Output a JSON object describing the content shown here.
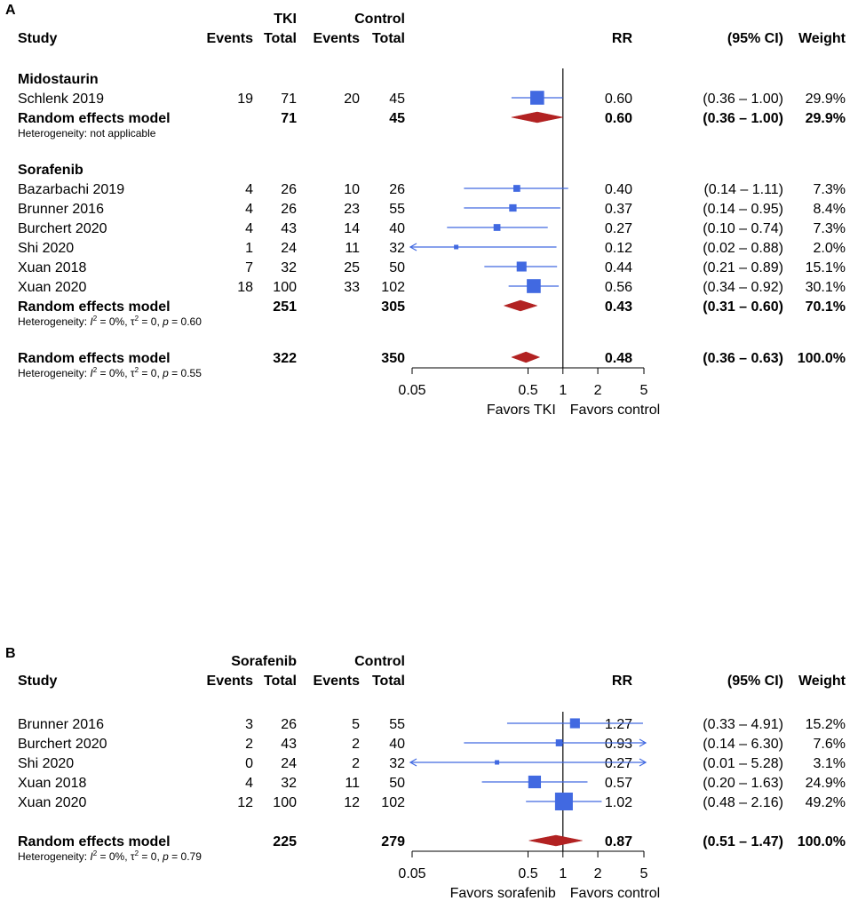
{
  "chart_data": [
    {
      "type": "forest",
      "panel_label": "A",
      "group_headers": {
        "exp": "TKI",
        "ctrl": "Control"
      },
      "column_headers": {
        "study": "Study",
        "events_exp": "Events",
        "total_exp": "Total",
        "events_ctrl": "Events",
        "total_ctrl": "Total",
        "rr": "RR",
        "ci": "(95% CI)",
        "weight": "Weight"
      },
      "x_axis": {
        "scale": "log",
        "ticks": [
          0.05,
          0.5,
          1,
          2,
          5
        ],
        "tick_labels": [
          "0.05",
          "0.5",
          "1",
          "2",
          "5"
        ],
        "label_left": "Favors TKI",
        "label_right": "Favors control"
      },
      "rows": [
        {
          "kind": "subgroup",
          "label": "Midostaurin"
        },
        {
          "kind": "study",
          "label": "Schlenk 2019",
          "events_exp": "19",
          "total_exp": "71",
          "events_ctrl": "20",
          "total_ctrl": "45",
          "rr": 0.6,
          "lower": 0.36,
          "upper": 1.0,
          "rr_text": "0.60",
          "ci_text": "(0.36 – 1.00)",
          "weight": 29.9,
          "weight_text": "29.9%"
        },
        {
          "kind": "summary",
          "label": "Random effects model",
          "total_exp": "71",
          "total_ctrl": "45",
          "rr": 0.6,
          "lower": 0.36,
          "upper": 1.0,
          "rr_text": "0.60",
          "ci_text": "(0.36 – 1.00)",
          "weight_text": "29.9%"
        },
        {
          "kind": "het",
          "text": "Heterogeneity: not applicable"
        },
        {
          "kind": "blank"
        },
        {
          "kind": "subgroup",
          "label": "Sorafenib"
        },
        {
          "kind": "study",
          "label": "Bazarbachi 2019",
          "events_exp": "4",
          "total_exp": "26",
          "events_ctrl": "10",
          "total_ctrl": "26",
          "rr": 0.4,
          "lower": 0.14,
          "upper": 1.11,
          "rr_text": "0.40",
          "ci_text": "(0.14 – 1.11)",
          "weight": 7.3,
          "weight_text": "7.3%"
        },
        {
          "kind": "study",
          "label": "Brunner 2016",
          "events_exp": "4",
          "total_exp": "26",
          "events_ctrl": "23",
          "total_ctrl": "55",
          "rr": 0.37,
          "lower": 0.14,
          "upper": 0.95,
          "rr_text": "0.37",
          "ci_text": "(0.14 – 0.95)",
          "weight": 8.4,
          "weight_text": "8.4%"
        },
        {
          "kind": "study",
          "label": "Burchert 2020",
          "events_exp": "4",
          "total_exp": "43",
          "events_ctrl": "14",
          "total_ctrl": "40",
          "rr": 0.27,
          "lower": 0.1,
          "upper": 0.74,
          "rr_text": "0.27",
          "ci_text": "(0.10 – 0.74)",
          "weight": 7.3,
          "weight_text": "7.3%"
        },
        {
          "kind": "study",
          "label": "Shi 2020",
          "events_exp": "1",
          "total_exp": "24",
          "events_ctrl": "11",
          "total_ctrl": "32",
          "rr": 0.12,
          "lower": 0.02,
          "upper": 0.88,
          "rr_text": "0.12",
          "ci_text": "(0.02 – 0.88)",
          "weight": 2.0,
          "weight_text": "2.0%"
        },
        {
          "kind": "study",
          "label": "Xuan 2018",
          "events_exp": "7",
          "total_exp": "32",
          "events_ctrl": "25",
          "total_ctrl": "50",
          "rr": 0.44,
          "lower": 0.21,
          "upper": 0.89,
          "rr_text": "0.44",
          "ci_text": "(0.21 – 0.89)",
          "weight": 15.1,
          "weight_text": "15.1%"
        },
        {
          "kind": "study",
          "label": "Xuan 2020",
          "events_exp": "18",
          "total_exp": "100",
          "events_ctrl": "33",
          "total_ctrl": "102",
          "rr": 0.56,
          "lower": 0.34,
          "upper": 0.92,
          "rr_text": "0.56",
          "ci_text": "(0.34 – 0.92)",
          "weight": 30.1,
          "weight_text": "30.1%"
        },
        {
          "kind": "summary",
          "label": "Random effects model",
          "total_exp": "251",
          "total_ctrl": "305",
          "rr": 0.43,
          "lower": 0.31,
          "upper": 0.6,
          "rr_text": "0.43",
          "ci_text": "(0.31 – 0.60)",
          "weight_text": "70.1%"
        },
        {
          "kind": "het",
          "pre": "Heterogeneity: ",
          "I2": "0%",
          "tau2": "0",
          "p": "0.60"
        },
        {
          "kind": "blank"
        },
        {
          "kind": "summary",
          "label": "Random effects model",
          "total_exp": "322",
          "total_ctrl": "350",
          "rr": 0.48,
          "lower": 0.36,
          "upper": 0.63,
          "rr_text": "0.48",
          "ci_text": "(0.36 – 0.63)",
          "weight_text": "100.0%"
        },
        {
          "kind": "het",
          "pre": "Heterogeneity: ",
          "I2": "0%",
          "tau2": "0",
          "p": "0.55"
        }
      ]
    },
    {
      "type": "forest",
      "panel_label": "B",
      "group_headers": {
        "exp": "Sorafenib",
        "ctrl": "Control"
      },
      "column_headers": {
        "study": "Study",
        "events_exp": "Events",
        "total_exp": "Total",
        "events_ctrl": "Events",
        "total_ctrl": "Total",
        "rr": "RR",
        "ci": "(95% CI)",
        "weight": "Weight"
      },
      "x_axis": {
        "scale": "log",
        "ticks": [
          0.05,
          0.5,
          1,
          2,
          5
        ],
        "tick_labels": [
          "0.05",
          "0.5",
          "1",
          "2",
          "5"
        ],
        "label_left": "Favors sorafenib",
        "label_right": "Favors control"
      },
      "rows": [
        {
          "kind": "blank"
        },
        {
          "kind": "study",
          "label": "Brunner 2016",
          "events_exp": "3",
          "total_exp": "26",
          "events_ctrl": "5",
          "total_ctrl": "55",
          "rr": 1.27,
          "lower": 0.33,
          "upper": 4.91,
          "rr_text": "1.27",
          "ci_text": "(0.33 – 4.91)",
          "weight": 15.2,
          "weight_text": "15.2%"
        },
        {
          "kind": "study",
          "label": "Burchert 2020",
          "events_exp": "2",
          "total_exp": "43",
          "events_ctrl": "2",
          "total_ctrl": "40",
          "rr": 0.93,
          "lower": 0.14,
          "upper": 6.3,
          "rr_text": "0.93",
          "ci_text": "(0.14 – 6.30)",
          "weight": 7.6,
          "weight_text": "7.6%"
        },
        {
          "kind": "study",
          "label": "Shi 2020",
          "events_exp": "0",
          "total_exp": "24",
          "events_ctrl": "2",
          "total_ctrl": "32",
          "rr": 0.27,
          "lower": 0.01,
          "upper": 5.28,
          "rr_text": "0.27",
          "ci_text": "(0.01 – 5.28)",
          "weight": 3.1,
          "weight_text": "3.1%"
        },
        {
          "kind": "study",
          "label": "Xuan 2018",
          "events_exp": "4",
          "total_exp": "32",
          "events_ctrl": "11",
          "total_ctrl": "50",
          "rr": 0.57,
          "lower": 0.2,
          "upper": 1.63,
          "rr_text": "0.57",
          "ci_text": "(0.20 – 1.63)",
          "weight": 24.9,
          "weight_text": "24.9%"
        },
        {
          "kind": "study",
          "label": "Xuan 2020",
          "events_exp": "12",
          "total_exp": "100",
          "events_ctrl": "12",
          "total_ctrl": "102",
          "rr": 1.02,
          "lower": 0.48,
          "upper": 2.16,
          "rr_text": "1.02",
          "ci_text": "(0.48 – 2.16)",
          "weight": 49.2,
          "weight_text": "49.2%"
        },
        {
          "kind": "blank"
        },
        {
          "kind": "summary",
          "label": "Random effects model",
          "total_exp": "225",
          "total_ctrl": "279",
          "rr": 0.87,
          "lower": 0.51,
          "upper": 1.47,
          "rr_text": "0.87",
          "ci_text": "(0.51 – 1.47)",
          "weight_text": "100.0%"
        },
        {
          "kind": "het",
          "pre": "Heterogeneity: ",
          "I2": "0%",
          "tau2": "0",
          "p": "0.79"
        }
      ]
    }
  ],
  "colors": {
    "square": "#4169e1",
    "ci_line": "#4169e1",
    "diamond": "#b22222",
    "axis": "#000000"
  }
}
